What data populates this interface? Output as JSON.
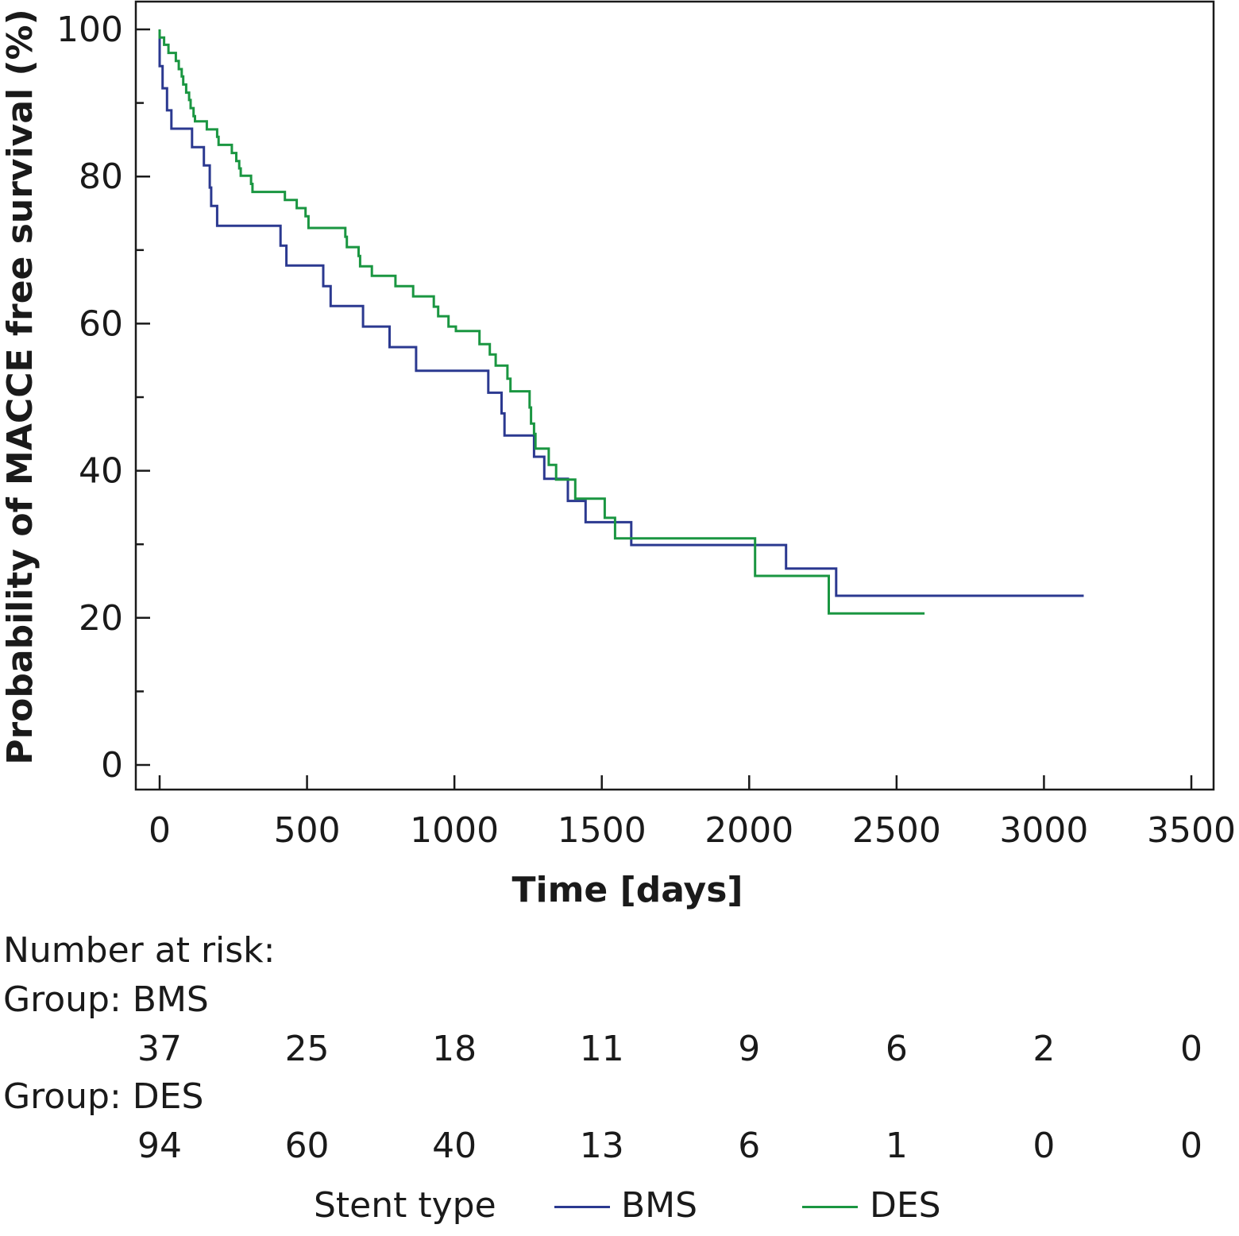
{
  "chart_data": {
    "type": "line",
    "step": true,
    "xlabel": "Time [days]",
    "ylabel": "Probability of MACCE free survival (%)",
    "xlim": [
      -80,
      3580
    ],
    "ylim": [
      -3.5,
      103.5
    ],
    "x_ticks": [
      0,
      500,
      1000,
      1500,
      2000,
      2500,
      3000,
      3500
    ],
    "y_ticks": [
      0,
      20,
      40,
      60,
      80,
      100
    ],
    "y_minor_ticks": [
      10,
      30,
      50,
      70,
      90
    ],
    "grid": false,
    "series": [
      {
        "name": "BMS",
        "color": "#2b3990",
        "points": [
          [
            0,
            100
          ],
          [
            0,
            95
          ],
          [
            10,
            95
          ],
          [
            10,
            92
          ],
          [
            25,
            92
          ],
          [
            25,
            89
          ],
          [
            40,
            89
          ],
          [
            40,
            86.5
          ],
          [
            110,
            86.5
          ],
          [
            110,
            84
          ],
          [
            150,
            84
          ],
          [
            150,
            81.5
          ],
          [
            170,
            81.5
          ],
          [
            170,
            78.5
          ],
          [
            175,
            78.5
          ],
          [
            175,
            76
          ],
          [
            195,
            76
          ],
          [
            195,
            73.3
          ],
          [
            410,
            73.3
          ],
          [
            410,
            70.6
          ],
          [
            430,
            70.6
          ],
          [
            430,
            67.9
          ],
          [
            555,
            67.9
          ],
          [
            555,
            65.1
          ],
          [
            580,
            65.1
          ],
          [
            580,
            62.4
          ],
          [
            690,
            62.4
          ],
          [
            690,
            59.6
          ],
          [
            780,
            59.6
          ],
          [
            780,
            56.8
          ],
          [
            870,
            56.8
          ],
          [
            870,
            53.6
          ],
          [
            1115,
            53.6
          ],
          [
            1115,
            50.6
          ],
          [
            1160,
            50.6
          ],
          [
            1160,
            47.8
          ],
          [
            1170,
            47.8
          ],
          [
            1170,
            44.8
          ],
          [
            1270,
            44.8
          ],
          [
            1270,
            41.9
          ],
          [
            1305,
            41.9
          ],
          [
            1305,
            38.9
          ],
          [
            1385,
            38.9
          ],
          [
            1385,
            35.9
          ],
          [
            1445,
            35.9
          ],
          [
            1445,
            33
          ],
          [
            1600,
            33
          ],
          [
            1600,
            29.9
          ],
          [
            2125,
            29.9
          ],
          [
            2125,
            26.7
          ],
          [
            2295,
            26.7
          ],
          [
            2295,
            23
          ],
          [
            3135,
            23
          ]
        ]
      },
      {
        "name": "DES",
        "color": "#1a9641",
        "points": [
          [
            0,
            100
          ],
          [
            0,
            98.9
          ],
          [
            15,
            98.9
          ],
          [
            15,
            97.9
          ],
          [
            30,
            97.9
          ],
          [
            30,
            96.8
          ],
          [
            55,
            96.8
          ],
          [
            55,
            95.7
          ],
          [
            65,
            95.7
          ],
          [
            65,
            94.6
          ],
          [
            75,
            94.6
          ],
          [
            75,
            93.6
          ],
          [
            80,
            93.6
          ],
          [
            80,
            92.5
          ],
          [
            90,
            92.5
          ],
          [
            90,
            91.4
          ],
          [
            100,
            91.4
          ],
          [
            100,
            90.4
          ],
          [
            105,
            90.4
          ],
          [
            105,
            89.3
          ],
          [
            115,
            89.3
          ],
          [
            115,
            88.2
          ],
          [
            120,
            88.2
          ],
          [
            120,
            87.5
          ],
          [
            160,
            87.5
          ],
          [
            160,
            86.4
          ],
          [
            195,
            86.4
          ],
          [
            195,
            85.4
          ],
          [
            200,
            85.4
          ],
          [
            200,
            84.3
          ],
          [
            245,
            84.3
          ],
          [
            245,
            83.2
          ],
          [
            260,
            83.2
          ],
          [
            260,
            82.1
          ],
          [
            270,
            82.1
          ],
          [
            270,
            81.1
          ],
          [
            275,
            81.1
          ],
          [
            275,
            80.1
          ],
          [
            310,
            80.1
          ],
          [
            310,
            79.0
          ],
          [
            315,
            79.0
          ],
          [
            315,
            77.9
          ],
          [
            425,
            77.9
          ],
          [
            425,
            76.8
          ],
          [
            465,
            76.8
          ],
          [
            465,
            75.7
          ],
          [
            495,
            75.7
          ],
          [
            495,
            74.6
          ],
          [
            505,
            74.6
          ],
          [
            505,
            73.0
          ],
          [
            630,
            73.0
          ],
          [
            630,
            71.8
          ],
          [
            635,
            71.8
          ],
          [
            635,
            70.4
          ],
          [
            675,
            70.4
          ],
          [
            675,
            69.2
          ],
          [
            680,
            69.2
          ],
          [
            680,
            67.8
          ],
          [
            720,
            67.8
          ],
          [
            720,
            66.5
          ],
          [
            800,
            66.5
          ],
          [
            800,
            65.1
          ],
          [
            860,
            65.1
          ],
          [
            860,
            63.7
          ],
          [
            930,
            63.7
          ],
          [
            930,
            62.3
          ],
          [
            945,
            62.3
          ],
          [
            945,
            61.0
          ],
          [
            980,
            61.0
          ],
          [
            980,
            59.6
          ],
          [
            1005,
            59.6
          ],
          [
            1005,
            59.0
          ],
          [
            1085,
            59.0
          ],
          [
            1085,
            57.2
          ],
          [
            1120,
            57.2
          ],
          [
            1120,
            55.8
          ],
          [
            1140,
            55.8
          ],
          [
            1140,
            54.3
          ],
          [
            1180,
            54.3
          ],
          [
            1180,
            52.5
          ],
          [
            1190,
            52.5
          ],
          [
            1190,
            50.8
          ],
          [
            1255,
            50.8
          ],
          [
            1255,
            48.6
          ],
          [
            1260,
            48.6
          ],
          [
            1260,
            46.4
          ],
          [
            1270,
            46.4
          ],
          [
            1270,
            45.0
          ],
          [
            1275,
            45.0
          ],
          [
            1275,
            43.0
          ],
          [
            1320,
            43.0
          ],
          [
            1320,
            40.8
          ],
          [
            1345,
            40.8
          ],
          [
            1345,
            38.8
          ],
          [
            1410,
            38.8
          ],
          [
            1410,
            36.2
          ],
          [
            1510,
            36.2
          ],
          [
            1510,
            33.6
          ],
          [
            1545,
            33.6
          ],
          [
            1545,
            30.8
          ],
          [
            2020,
            30.8
          ],
          [
            2020,
            25.7
          ],
          [
            2270,
            25.7
          ],
          [
            2270,
            20.6
          ],
          [
            2595,
            20.6
          ]
        ]
      }
    ]
  },
  "risk_table": {
    "heading": "Number at risk:",
    "groups": [
      {
        "label": "Group: BMS",
        "values": [
          "37",
          "25",
          "18",
          "11",
          "9",
          "6",
          "2",
          "0"
        ]
      },
      {
        "label": "Group: DES",
        "values": [
          "94",
          "60",
          "40",
          "13",
          "6",
          "1",
          "0",
          "0"
        ]
      }
    ]
  },
  "legend": {
    "title": "Stent type",
    "items": [
      {
        "label": "BMS",
        "color": "#2b3990"
      },
      {
        "label": "DES",
        "color": "#1a9641"
      }
    ]
  }
}
